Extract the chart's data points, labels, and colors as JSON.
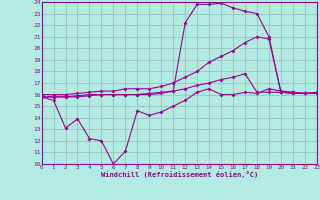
{
  "xlabel": "Windchill (Refroidissement éolien,°C)",
  "bg_color": "#b2ebe0",
  "grid_color": "#9ab8b8",
  "line_color": "#990099",
  "xmin": 0,
  "xmax": 23,
  "ymin": 10,
  "ymax": 24,
  "yticks": [
    10,
    11,
    12,
    13,
    14,
    15,
    16,
    17,
    18,
    19,
    20,
    21,
    22,
    23,
    24
  ],
  "xticks": [
    0,
    1,
    2,
    3,
    4,
    5,
    6,
    7,
    8,
    9,
    10,
    11,
    12,
    13,
    14,
    15,
    16,
    17,
    18,
    19,
    20,
    21,
    22,
    23
  ],
  "line1_x": [
    0,
    1,
    2,
    3,
    4,
    5,
    6,
    7,
    8,
    9,
    10,
    11,
    12,
    13,
    14,
    15,
    16,
    17,
    18,
    19,
    20,
    21,
    22,
    23
  ],
  "line1_y": [
    15.8,
    15.5,
    13.1,
    13.9,
    12.2,
    12.0,
    10.0,
    11.1,
    14.6,
    14.2,
    14.5,
    15.0,
    15.5,
    16.2,
    16.5,
    16.0,
    16.0,
    16.2,
    16.1,
    16.5,
    16.3,
    16.2,
    16.1,
    16.2
  ],
  "line2_x": [
    0,
    1,
    2,
    3,
    4,
    5,
    6,
    7,
    8,
    9,
    10,
    11,
    12,
    13,
    14,
    15,
    16,
    17,
    18,
    19,
    20,
    21,
    22,
    23
  ],
  "line2_y": [
    15.8,
    15.8,
    15.8,
    15.9,
    16.0,
    16.0,
    16.0,
    16.0,
    16.0,
    16.1,
    16.2,
    16.3,
    16.5,
    16.8,
    17.0,
    17.3,
    17.5,
    17.8,
    16.2,
    16.2,
    16.2,
    16.1,
    16.1,
    16.1
  ],
  "line3_x": [
    0,
    1,
    2,
    3,
    4,
    5,
    6,
    7,
    8,
    9,
    10,
    11,
    12,
    13,
    14,
    15,
    16,
    17,
    18,
    19,
    20,
    21,
    22,
    23
  ],
  "line3_y": [
    16.0,
    16.0,
    16.0,
    16.1,
    16.2,
    16.3,
    16.3,
    16.5,
    16.5,
    16.5,
    16.7,
    17.0,
    17.5,
    18.0,
    18.8,
    19.3,
    19.8,
    20.5,
    21.0,
    20.8,
    16.2,
    16.2,
    16.1,
    16.1
  ],
  "line4_x": [
    0,
    1,
    2,
    3,
    4,
    5,
    6,
    7,
    8,
    9,
    10,
    11,
    12,
    13,
    14,
    15,
    16,
    17,
    18,
    19,
    20,
    21,
    22,
    23
  ],
  "line4_y": [
    15.8,
    15.8,
    15.8,
    15.8,
    15.9,
    16.0,
    16.0,
    16.0,
    16.0,
    16.0,
    16.1,
    16.3,
    22.2,
    23.8,
    23.8,
    23.9,
    23.5,
    23.2,
    23.0,
    21.0,
    16.2,
    16.1,
    16.1,
    16.1
  ]
}
